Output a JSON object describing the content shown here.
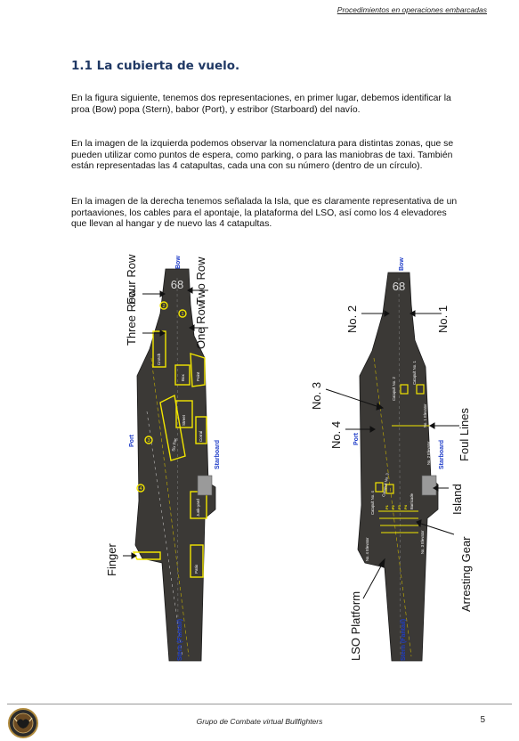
{
  "header": {
    "running_title": "Procedimientos en operaciones embarcadas"
  },
  "section": {
    "title": "1.1 La cubierta de vuelo."
  },
  "paragraphs": [
    "En la figura siguiente, tenemos dos representaciones, en primer lugar, debemos identificar la proa (Bow) popa (Stern), babor (Port), y estribor (Starboard) del navío.",
    "En la imagen de la izquierda podemos observar la nomenclatura para distintas zonas, que se pueden utilizar como puntos de espera, como parking, o para las maniobras de taxi. También están representadas las 4 catapultas, cada una con su número (dentro de un círculo).",
    "En la imagen de la derecha tenemos señalada la Isla, que es claramente representativa de un portaaviones, los cables para el apontaje, la plataforma del LSO, así como los 4 elevadores que llevan al hangar y de nuevo las 4 catapultas."
  ],
  "left_figure": {
    "hull_number": "68",
    "labels": {
      "bow": "Bow",
      "port": "Port",
      "starboard": "Starboard",
      "stern": "Stern (Fantail)",
      "four_row": "Four Row",
      "three_row": "Three Row",
      "two_row": "Two Row",
      "one_row": "One Row",
      "finger": "Finger"
    },
    "zones": [
      "Crotch",
      "Box",
      "Point",
      "Street",
      "Six Pac",
      "Corral",
      "Junk-yard",
      "Patio"
    ],
    "catapults": [
      "1",
      "2",
      "3",
      "4"
    ]
  },
  "right_figure": {
    "hull_number": "68",
    "labels": {
      "bow": "Bow",
      "port": "Port",
      "starboard": "Starboard",
      "stern": "Stern (Fantail)",
      "no2": "No. 2",
      "no1": "No. 1",
      "no3": "No. 3",
      "no4": "No. 4",
      "foul_lines": "Foul Lines",
      "island": "Island",
      "arresting_gear": "Arresting Gear",
      "lso_platform": "LSO Platform"
    },
    "deck_labels": {
      "cat2": "Catapult No. 2",
      "cat1": "Catapult No. 1",
      "elev1": "No. 1 Elevator",
      "elev2": "No. 2 Elevator",
      "cat4": "Catapult No. 4",
      "cat3": "Catapult No. 3",
      "barricade": "Barricade",
      "elev3": "No. 3 Elevator",
      "elev4": "No. 4 Elevator",
      "wires": [
        "P1",
        "P2",
        "P3",
        "P4"
      ]
    }
  },
  "footer": {
    "text": "Grupo de Combate virtual Bullfighters",
    "page": "5"
  },
  "colors": {
    "title": "#1f3864",
    "deck": "#3b3936",
    "highlight": "#f2e600",
    "label_blue": "#1e3cc8"
  }
}
